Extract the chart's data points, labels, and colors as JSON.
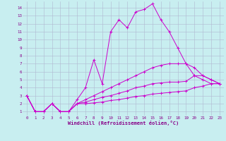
{
  "bg_color": "#c8eef0",
  "line_color": "#cc00cc",
  "grid_color": "#b0b8d0",
  "xlabel": "Windchill (Refroidissement éolien,°C)",
  "xlabel_color": "#880088",
  "tick_color": "#880088",
  "ylim": [
    0.5,
    14.8
  ],
  "xlim": [
    -0.5,
    23.5
  ],
  "yticks": [
    1,
    2,
    3,
    4,
    5,
    6,
    7,
    8,
    9,
    10,
    11,
    12,
    13,
    14
  ],
  "xticks": [
    0,
    1,
    2,
    3,
    4,
    5,
    6,
    7,
    8,
    9,
    10,
    11,
    12,
    13,
    14,
    15,
    16,
    17,
    18,
    19,
    20,
    21,
    22,
    23
  ],
  "series": [
    [
      3.0,
      1.0,
      1.0,
      2.0,
      1.0,
      1.0,
      2.5,
      4.0,
      7.5,
      4.5,
      11.0,
      12.5,
      11.5,
      13.5,
      13.8,
      14.5,
      12.5,
      11.0,
      9.0,
      7.0,
      5.5,
      5.0,
      4.5,
      4.5
    ],
    [
      3.0,
      1.0,
      1.0,
      2.0,
      1.0,
      1.0,
      2.0,
      2.5,
      3.0,
      3.5,
      4.0,
      4.5,
      5.0,
      5.5,
      6.0,
      6.5,
      6.8,
      7.0,
      7.0,
      7.0,
      6.5,
      5.5,
      5.0,
      4.5
    ],
    [
      3.0,
      1.0,
      1.0,
      2.0,
      1.0,
      1.0,
      2.0,
      2.2,
      2.5,
      2.8,
      3.0,
      3.3,
      3.6,
      4.0,
      4.2,
      4.5,
      4.6,
      4.7,
      4.7,
      4.8,
      5.5,
      5.5,
      5.0,
      4.5
    ],
    [
      3.0,
      1.0,
      1.0,
      2.0,
      1.0,
      1.0,
      2.0,
      2.0,
      2.1,
      2.2,
      2.4,
      2.5,
      2.7,
      2.9,
      3.0,
      3.2,
      3.3,
      3.4,
      3.5,
      3.6,
      4.0,
      4.2,
      4.5,
      4.5
    ]
  ]
}
